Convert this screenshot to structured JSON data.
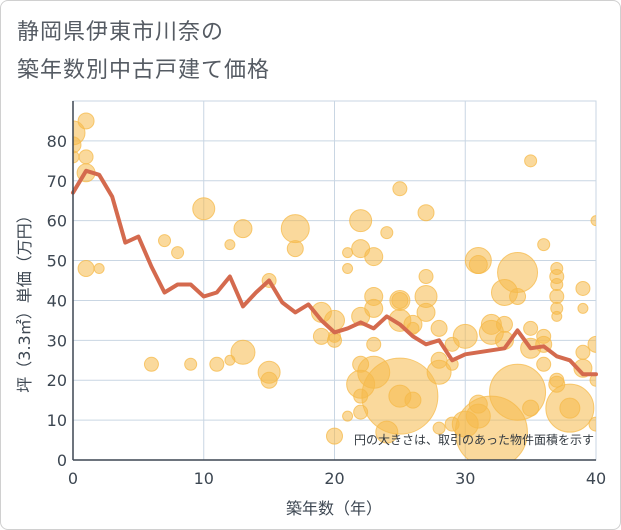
{
  "title_line1": "静岡県伊東市川奈の",
  "title_line2": "築年数別中古戸建て価格",
  "colors": {
    "bubble": "#f5b94a",
    "line": "#d46a4e",
    "grid": "#c9d6e3",
    "axis": "#3d4752"
  },
  "chart_data": {
    "type": "scatter",
    "xlabel": "築年数（年）",
    "ylabel": "坪（3.3㎡）単価（万円）",
    "xlim": [
      0,
      40
    ],
    "ylim": [
      0,
      90
    ],
    "xticks": [
      0,
      10,
      20,
      30,
      40
    ],
    "yticks": [
      0,
      10,
      20,
      30,
      40,
      50,
      60,
      70,
      80
    ],
    "grid": true,
    "annotation": "円の大きさは、取引のあった物件面積を示す",
    "bubbles": [
      {
        "x": 0,
        "y": 82,
        "s": 12
      },
      {
        "x": 0,
        "y": 79,
        "s": 8
      },
      {
        "x": 0,
        "y": 76,
        "s": 6
      },
      {
        "x": 1,
        "y": 85,
        "s": 8
      },
      {
        "x": 1,
        "y": 76,
        "s": 7
      },
      {
        "x": 1,
        "y": 72,
        "s": 9
      },
      {
        "x": 1,
        "y": 48,
        "s": 8
      },
      {
        "x": 2,
        "y": 48,
        "s": 5
      },
      {
        "x": 6,
        "y": 24,
        "s": 7
      },
      {
        "x": 7,
        "y": 55,
        "s": 6
      },
      {
        "x": 8,
        "y": 52,
        "s": 6
      },
      {
        "x": 9,
        "y": 24,
        "s": 6
      },
      {
        "x": 10,
        "y": 63,
        "s": 11
      },
      {
        "x": 11,
        "y": 24,
        "s": 7
      },
      {
        "x": 12,
        "y": 54,
        "s": 5
      },
      {
        "x": 12,
        "y": 25,
        "s": 5
      },
      {
        "x": 13,
        "y": 58,
        "s": 9
      },
      {
        "x": 13,
        "y": 27,
        "s": 12
      },
      {
        "x": 15,
        "y": 45,
        "s": 7
      },
      {
        "x": 15,
        "y": 22,
        "s": 11
      },
      {
        "x": 15,
        "y": 20,
        "s": 8
      },
      {
        "x": 17,
        "y": 58,
        "s": 14
      },
      {
        "x": 17,
        "y": 53,
        "s": 8
      },
      {
        "x": 19,
        "y": 31,
        "s": 8
      },
      {
        "x": 19,
        "y": 37,
        "s": 10
      },
      {
        "x": 20,
        "y": 35,
        "s": 10
      },
      {
        "x": 20,
        "y": 30,
        "s": 7
      },
      {
        "x": 20,
        "y": 31,
        "s": 6
      },
      {
        "x": 20,
        "y": 6,
        "s": 8
      },
      {
        "x": 21,
        "y": 52,
        "s": 5
      },
      {
        "x": 21,
        "y": 48,
        "s": 5
      },
      {
        "x": 21,
        "y": 11,
        "s": 5
      },
      {
        "x": 22,
        "y": 60,
        "s": 11
      },
      {
        "x": 22,
        "y": 53,
        "s": 9
      },
      {
        "x": 22,
        "y": 36,
        "s": 9
      },
      {
        "x": 22,
        "y": 24,
        "s": 8
      },
      {
        "x": 22,
        "y": 19,
        "s": 14
      },
      {
        "x": 22,
        "y": 16,
        "s": 7
      },
      {
        "x": 22,
        "y": 12,
        "s": 7
      },
      {
        "x": 23,
        "y": 51,
        "s": 9
      },
      {
        "x": 23,
        "y": 41,
        "s": 9
      },
      {
        "x": 23,
        "y": 38,
        "s": 9
      },
      {
        "x": 23,
        "y": 29,
        "s": 7
      },
      {
        "x": 23,
        "y": 22,
        "s": 16
      },
      {
        "x": 24,
        "y": 57,
        "s": 6
      },
      {
        "x": 24,
        "y": 7,
        "s": 11
      },
      {
        "x": 25,
        "y": 68,
        "s": 7
      },
      {
        "x": 25,
        "y": 40,
        "s": 10
      },
      {
        "x": 25,
        "y": 40,
        "s": 8
      },
      {
        "x": 25,
        "y": 35,
        "s": 11
      },
      {
        "x": 25,
        "y": 16,
        "s": 38
      },
      {
        "x": 25,
        "y": 16,
        "s": 11
      },
      {
        "x": 26,
        "y": 34,
        "s": 9
      },
      {
        "x": 26,
        "y": 15,
        "s": 8
      },
      {
        "x": 26,
        "y": 33,
        "s": 6
      },
      {
        "x": 27,
        "y": 62,
        "s": 8
      },
      {
        "x": 27,
        "y": 46,
        "s": 7
      },
      {
        "x": 27,
        "y": 41,
        "s": 11
      },
      {
        "x": 27,
        "y": 37,
        "s": 9
      },
      {
        "x": 28,
        "y": 33,
        "s": 8
      },
      {
        "x": 28,
        "y": 25,
        "s": 8
      },
      {
        "x": 28,
        "y": 22,
        "s": 12
      },
      {
        "x": 28,
        "y": 8,
        "s": 6
      },
      {
        "x": 29,
        "y": 29,
        "s": 7
      },
      {
        "x": 29,
        "y": 24,
        "s": 6
      },
      {
        "x": 29,
        "y": 9,
        "s": 7
      },
      {
        "x": 30,
        "y": 31,
        "s": 12
      },
      {
        "x": 30,
        "y": 9,
        "s": 13
      },
      {
        "x": 31,
        "y": 50,
        "s": 13
      },
      {
        "x": 31,
        "y": 49,
        "s": 9
      },
      {
        "x": 31,
        "y": 14,
        "s": 9
      },
      {
        "x": 31,
        "y": 11,
        "s": 12
      },
      {
        "x": 32,
        "y": 34,
        "s": 10
      },
      {
        "x": 32,
        "y": 32,
        "s": 12
      },
      {
        "x": 32,
        "y": 7,
        "s": 36
      },
      {
        "x": 33,
        "y": 42,
        "s": 13
      },
      {
        "x": 33,
        "y": 34,
        "s": 8
      },
      {
        "x": 33,
        "y": 30,
        "s": 9
      },
      {
        "x": 34,
        "y": 47,
        "s": 20
      },
      {
        "x": 34,
        "y": 41,
        "s": 8
      },
      {
        "x": 34,
        "y": 17,
        "s": 28
      },
      {
        "x": 35,
        "y": 75,
        "s": 6
      },
      {
        "x": 35,
        "y": 33,
        "s": 7
      },
      {
        "x": 35,
        "y": 28,
        "s": 10
      },
      {
        "x": 35,
        "y": 13,
        "s": 8
      },
      {
        "x": 36,
        "y": 54,
        "s": 6
      },
      {
        "x": 36,
        "y": 31,
        "s": 7
      },
      {
        "x": 36,
        "y": 29,
        "s": 8
      },
      {
        "x": 36,
        "y": 24,
        "s": 7
      },
      {
        "x": 37,
        "y": 48,
        "s": 6
      },
      {
        "x": 37,
        "y": 46,
        "s": 7
      },
      {
        "x": 37,
        "y": 44,
        "s": 6
      },
      {
        "x": 37,
        "y": 41,
        "s": 7
      },
      {
        "x": 37,
        "y": 38,
        "s": 6
      },
      {
        "x": 37,
        "y": 36,
        "s": 5
      },
      {
        "x": 37,
        "y": 20,
        "s": 7
      },
      {
        "x": 37,
        "y": 19,
        "s": 8
      },
      {
        "x": 38,
        "y": 13,
        "s": 24
      },
      {
        "x": 38,
        "y": 13,
        "s": 10
      },
      {
        "x": 39,
        "y": 43,
        "s": 7
      },
      {
        "x": 39,
        "y": 38,
        "s": 5
      },
      {
        "x": 39,
        "y": 27,
        "s": 7
      },
      {
        "x": 39,
        "y": 23,
        "s": 9
      },
      {
        "x": 40,
        "y": 60,
        "s": 5
      },
      {
        "x": 40,
        "y": 29,
        "s": 8
      },
      {
        "x": 40,
        "y": 20,
        "s": 6
      },
      {
        "x": 40,
        "y": 9,
        "s": 7
      },
      {
        "x": 41,
        "y": 35,
        "s": 7
      },
      {
        "x": 41,
        "y": 32,
        "s": 7
      },
      {
        "x": 41,
        "y": 29,
        "s": 6
      },
      {
        "x": 41,
        "y": 18,
        "s": 7
      }
    ],
    "series": [
      {
        "name": "平均坪単価",
        "x": [
          0,
          1,
          2,
          3,
          4,
          5,
          6,
          7,
          8,
          9,
          10,
          11,
          12,
          13,
          14,
          15,
          16,
          17,
          18,
          19,
          20,
          21,
          22,
          23,
          24,
          25,
          26,
          27,
          28,
          29,
          30,
          31,
          32,
          33,
          34,
          35,
          36,
          37,
          38,
          39,
          40
        ],
        "y": [
          67,
          72.5,
          71.5,
          66,
          54.5,
          56,
          48.5,
          42,
          44,
          44,
          41,
          42,
          46,
          38.5,
          42,
          45,
          39.5,
          37,
          39,
          35,
          32,
          33,
          34.5,
          33,
          36,
          34,
          31,
          29,
          30,
          25,
          26.5,
          27,
          27.5,
          28,
          32.5,
          28,
          28.5,
          26,
          25,
          21.5,
          21.5
        ]
      }
    ]
  }
}
